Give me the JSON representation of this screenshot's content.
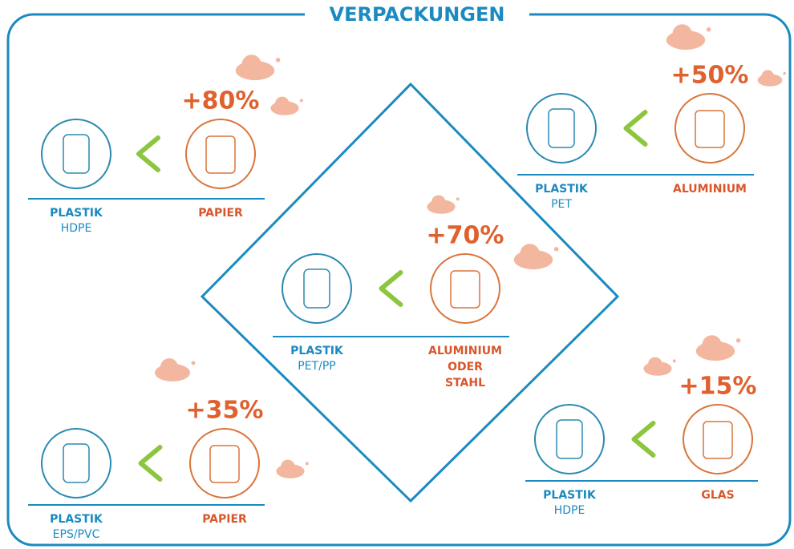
{
  "title": "VERPACKUNGEN",
  "comparisons": [
    {
      "increase": "+80%",
      "left": {
        "material": "PLASTIK",
        "type": "HDPE"
      },
      "right": {
        "material": [
          "PAPIER"
        ]
      }
    },
    {
      "increase": "+50%",
      "left": {
        "material": "PLASTIK",
        "type": "PET"
      },
      "right": {
        "material": [
          "ALUMINIUM"
        ]
      }
    },
    {
      "increase": "+70%",
      "left": {
        "material": "PLASTIK",
        "type": "PET/PP"
      },
      "right": {
        "material": [
          "ALUMINIUM",
          "ODER",
          "STAHL"
        ]
      }
    },
    {
      "increase": "+35%",
      "left": {
        "material": "PLASTIK",
        "type": "EPS/PVC"
      },
      "right": {
        "material": [
          "PAPIER"
        ]
      }
    },
    {
      "increase": "+15%",
      "left": {
        "material": "PLASTIK",
        "type": "HDPE"
      },
      "right": {
        "material": [
          "GLAS"
        ]
      }
    }
  ]
}
